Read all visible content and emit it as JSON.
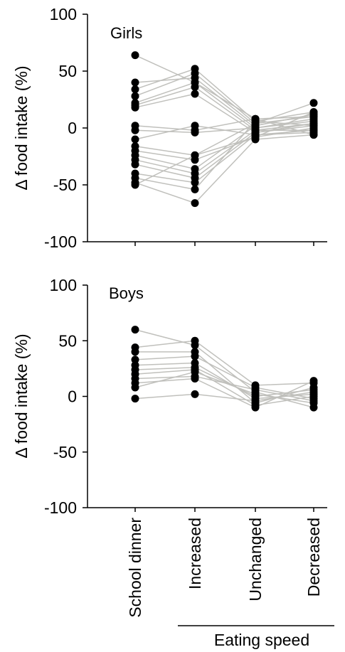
{
  "chart_data": [
    {
      "type": "scatter",
      "panel_label": "Girls",
      "ylabel": "Δ food intake (%)",
      "ylim": [
        -100,
        100
      ],
      "yticks": [
        "100",
        "50",
        "0",
        "-50",
        "-100"
      ],
      "ytick_values": [
        100,
        50,
        0,
        -50,
        -100
      ],
      "categories": [
        "School dinner",
        "Increased",
        "Unchanged",
        "Decreased"
      ],
      "line_color": "#c0c0bc",
      "point_color": "#000000",
      "series": [
        {
          "values": [
            64,
            40,
            8,
            10
          ]
        },
        {
          "values": [
            40,
            44,
            2,
            12
          ]
        },
        {
          "values": [
            34,
            52,
            6,
            14
          ]
        },
        {
          "values": [
            28,
            48,
            4,
            22
          ]
        },
        {
          "values": [
            22,
            40,
            0,
            8
          ]
        },
        {
          "values": [
            20,
            36,
            -2,
            4
          ]
        },
        {
          "values": [
            18,
            30,
            -4,
            2
          ]
        },
        {
          "values": [
            2,
            -2,
            8,
            -6
          ]
        },
        {
          "values": [
            -2,
            -4,
            0,
            6
          ]
        },
        {
          "values": [
            -10,
            2,
            -6,
            -2
          ]
        },
        {
          "values": [
            -16,
            -24,
            4,
            10
          ]
        },
        {
          "values": [
            -20,
            -28,
            -8,
            0
          ]
        },
        {
          "values": [
            -24,
            -36,
            2,
            12
          ]
        },
        {
          "values": [
            -28,
            -40,
            -2,
            -2
          ]
        },
        {
          "values": [
            -32,
            -44,
            -4,
            4
          ]
        },
        {
          "values": [
            -40,
            -48,
            -6,
            -4
          ]
        },
        {
          "values": [
            -44,
            -54,
            6,
            2
          ]
        },
        {
          "values": [
            -48,
            -66,
            -10,
            -6
          ]
        },
        {
          "values": [
            -50,
            -24,
            -8,
            14
          ]
        }
      ]
    },
    {
      "type": "scatter",
      "panel_label": "Boys",
      "ylabel": "Δ food intake (%)",
      "ylim": [
        -100,
        100
      ],
      "yticks": [
        "100",
        "50",
        "0",
        "-50",
        "-100"
      ],
      "ytick_values": [
        100,
        50,
        0,
        -50,
        -100
      ],
      "categories": [
        "School dinner",
        "Increased",
        "Unchanged",
        "Decreased"
      ],
      "line_color": "#c0c0bc",
      "point_color": "#000000",
      "series": [
        {
          "values": [
            60,
            46,
            4,
            -10
          ]
        },
        {
          "values": [
            44,
            50,
            10,
            12
          ]
        },
        {
          "values": [
            40,
            40,
            -6,
            8
          ]
        },
        {
          "values": [
            33,
            36,
            8,
            -2
          ]
        },
        {
          "values": [
            28,
            30,
            -2,
            2
          ]
        },
        {
          "values": [
            24,
            26,
            0,
            6
          ]
        },
        {
          "values": [
            20,
            24,
            -8,
            0
          ]
        },
        {
          "values": [
            16,
            18,
            6,
            -4
          ]
        },
        {
          "values": [
            12,
            16,
            -10,
            14
          ]
        },
        {
          "values": [
            8,
            22,
            2,
            -6
          ]
        },
        {
          "values": [
            -2,
            2,
            -4,
            4
          ]
        }
      ]
    }
  ],
  "xaxis_group_label": "Eating speed"
}
